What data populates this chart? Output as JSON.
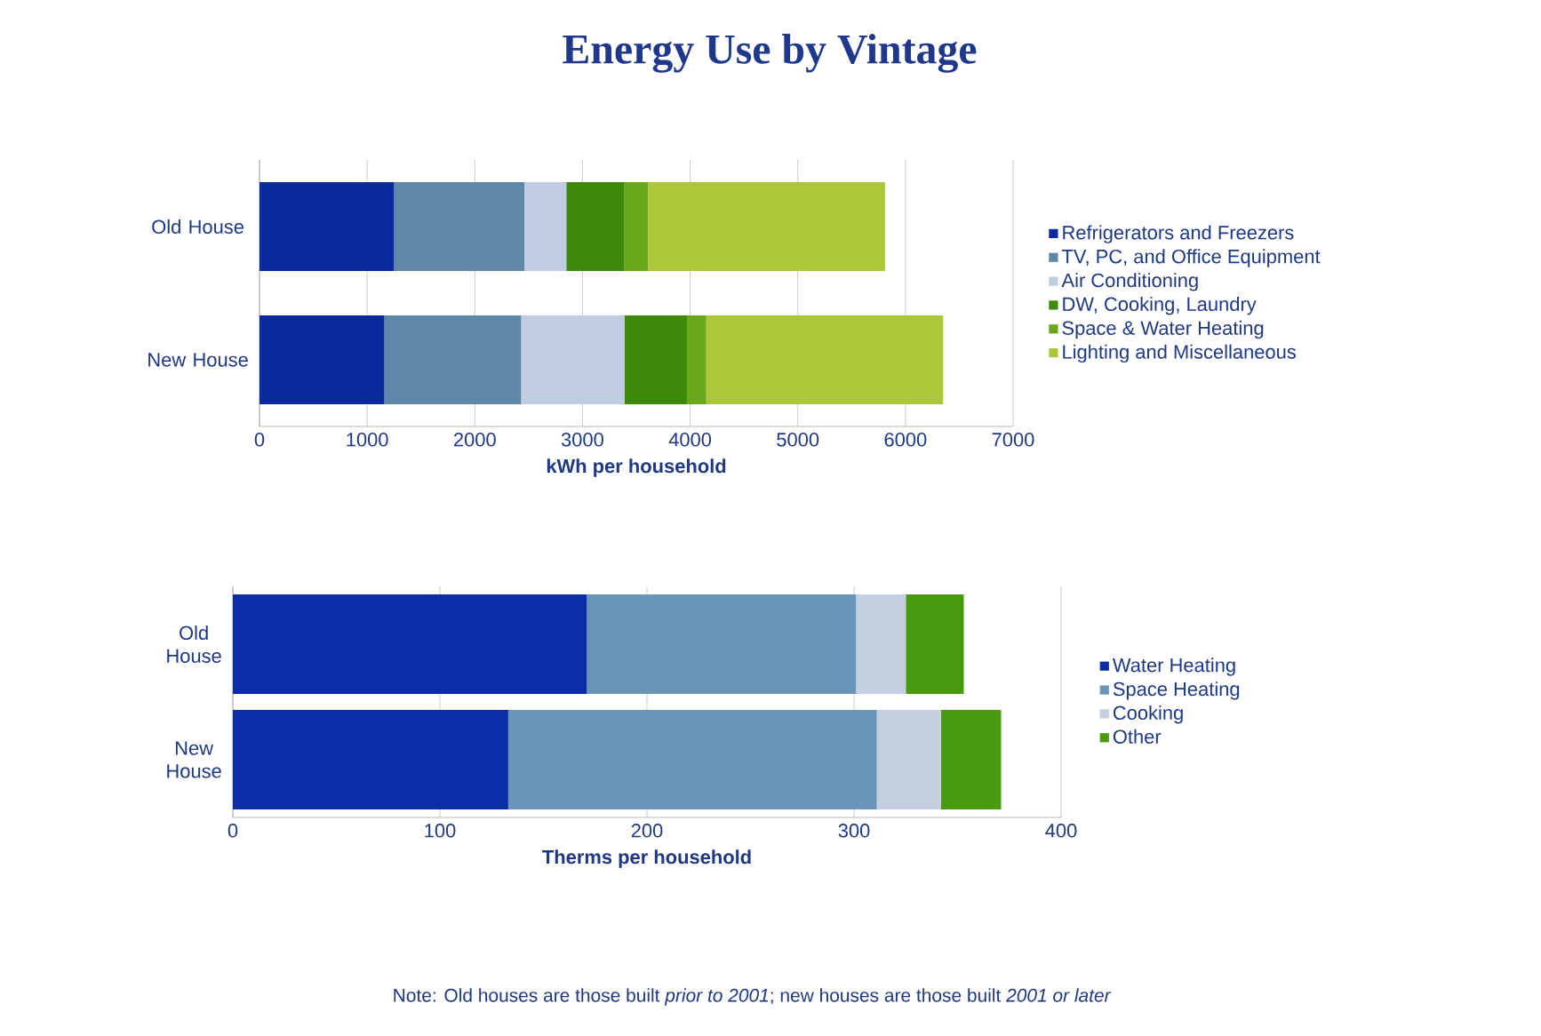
{
  "chart_data": [
    {
      "type": "bar",
      "title": "Energy Use by Vintage",
      "orientation": "horizontal",
      "stacked": true,
      "categories": [
        "Old House",
        "New House"
      ],
      "xlabel": "kWh per household",
      "xlim": [
        0,
        7000
      ],
      "xticks": [
        0,
        1000,
        2000,
        3000,
        4000,
        5000,
        6000,
        7000
      ],
      "grid": "x",
      "legend": "right",
      "series": [
        {
          "name": "Refrigerators and Freezers",
          "color": "#0a2a9e",
          "values": [
            1250,
            1160
          ]
        },
        {
          "name": "TV, PC, and Office Equipment",
          "color": "#5e87a8",
          "values": [
            1210,
            1270
          ]
        },
        {
          "name": "Air Conditioning",
          "color": "#c0cce0",
          "values": [
            390,
            960
          ]
        },
        {
          "name": "DW, Cooking, Laundry",
          "color": "#3d8a0a",
          "values": [
            540,
            580
          ]
        },
        {
          "name": "Space & Water Heating",
          "color": "#6aa81a",
          "values": [
            220,
            180
          ]
        },
        {
          "name": "Lighting and Miscellaneous",
          "color": "#aac838",
          "values": [
            2200,
            2200
          ]
        }
      ]
    },
    {
      "type": "bar",
      "orientation": "horizontal",
      "stacked": true,
      "categories": [
        "Old House",
        "New House"
      ],
      "xlabel": "Therms per household",
      "xlim": [
        0,
        400
      ],
      "xticks": [
        0,
        100,
        200,
        300,
        400
      ],
      "grid": "x",
      "legend": "right",
      "annotations": [
        "Note: Old houses are those built *prior to 2001*; new houses are those built *2001 or later*"
      ],
      "series": [
        {
          "name": "Water Heating",
          "color": "#0a2ea8",
          "values": [
            171,
            133
          ]
        },
        {
          "name": "Space Heating",
          "color": "#6a95b8",
          "values": [
            130,
            178
          ]
        },
        {
          "name": "Cooking",
          "color": "#c4cfe2",
          "values": [
            24,
            31
          ]
        },
        {
          "name": "Other",
          "color": "#4a9a10",
          "values": [
            28,
            29
          ]
        }
      ]
    }
  ]
}
